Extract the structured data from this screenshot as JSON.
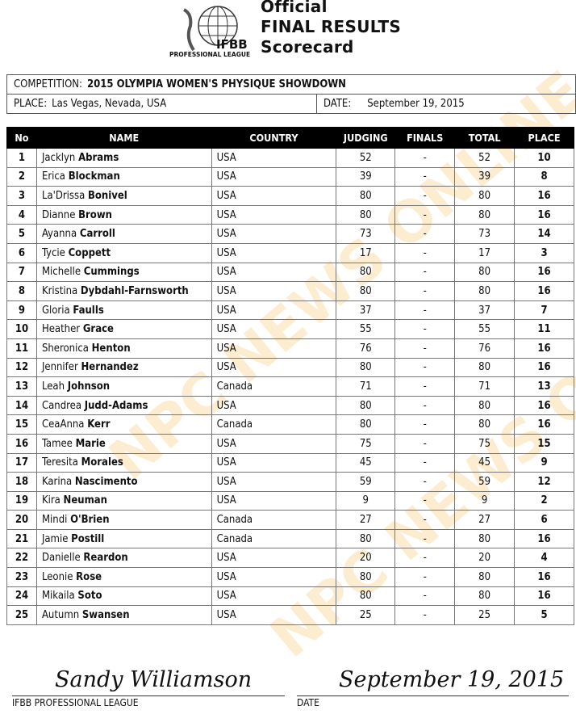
{
  "header": {
    "logo_text": "IFBB",
    "logo_subtext": "PROFESSIONAL LEAGUE",
    "title_lines": [
      "Official",
      "FINAL RESULTS",
      "Scorecard"
    ]
  },
  "info": {
    "competition_label": "COMPETITION:",
    "competition_value": "2015 OLYMPIA WOMEN'S PHYSIQUE SHOWDOWN",
    "place_label": "PLACE:",
    "place_value": "Las Vegas, Nevada, USA",
    "date_label": "DATE:",
    "date_value": "September 19, 2015"
  },
  "table": {
    "columns": [
      "No",
      "NAME",
      "COUNTRY",
      "JUDGING",
      "FINALS",
      "TOTAL",
      "PLACE"
    ],
    "rows": [
      {
        "no": "1",
        "first": "Jacklyn",
        "last": "Abrams",
        "country": "USA",
        "judging": "52",
        "finals": "-",
        "total": "52",
        "place": "10"
      },
      {
        "no": "2",
        "first": "Erica",
        "last": "Blockman",
        "country": "USA",
        "judging": "39",
        "finals": "-",
        "total": "39",
        "place": "8"
      },
      {
        "no": "3",
        "first": "La'Drissa",
        "last": "Bonivel",
        "country": "USA",
        "judging": "80",
        "finals": "-",
        "total": "80",
        "place": "16"
      },
      {
        "no": "4",
        "first": "Dianne",
        "last": "Brown",
        "country": "USA",
        "judging": "80",
        "finals": "-",
        "total": "80",
        "place": "16"
      },
      {
        "no": "5",
        "first": "Ayanna",
        "last": "Carroll",
        "country": "USA",
        "judging": "73",
        "finals": "-",
        "total": "73",
        "place": "14"
      },
      {
        "no": "6",
        "first": "Tycie",
        "last": "Coppett",
        "country": "USA",
        "judging": "17",
        "finals": "-",
        "total": "17",
        "place": "3"
      },
      {
        "no": "7",
        "first": "Michelle",
        "last": "Cummings",
        "country": "USA",
        "judging": "80",
        "finals": "-",
        "total": "80",
        "place": "16"
      },
      {
        "no": "8",
        "first": "Kristina",
        "last": "Dybdahl-Farnsworth",
        "country": "USA",
        "judging": "80",
        "finals": "-",
        "total": "80",
        "place": "16"
      },
      {
        "no": "9",
        "first": "Gloria",
        "last": "Faulls",
        "country": "USA",
        "judging": "37",
        "finals": "-",
        "total": "37",
        "place": "7"
      },
      {
        "no": "10",
        "first": "Heather",
        "last": "Grace",
        "country": "USA",
        "judging": "55",
        "finals": "-",
        "total": "55",
        "place": "11"
      },
      {
        "no": "11",
        "first": "Sheronica",
        "last": "Henton",
        "country": "USA",
        "judging": "76",
        "finals": "-",
        "total": "76",
        "place": "16"
      },
      {
        "no": "12",
        "first": "Jennifer",
        "last": "Hernandez",
        "country": "USA",
        "judging": "80",
        "finals": "-",
        "total": "80",
        "place": "16"
      },
      {
        "no": "13",
        "first": "Leah",
        "last": "Johnson",
        "country": "Canada",
        "judging": "71",
        "finals": "-",
        "total": "71",
        "place": "13"
      },
      {
        "no": "14",
        "first": "Candrea",
        "last": "Judd-Adams",
        "country": "USA",
        "judging": "80",
        "finals": "-",
        "total": "80",
        "place": "16"
      },
      {
        "no": "15",
        "first": "CeaAnna",
        "last": "Kerr",
        "country": "Canada",
        "judging": "80",
        "finals": "-",
        "total": "80",
        "place": "16"
      },
      {
        "no": "16",
        "first": "Tamee",
        "last": "Marie",
        "country": "USA",
        "judging": "75",
        "finals": "-",
        "total": "75",
        "place": "15"
      },
      {
        "no": "17",
        "first": "Teresita",
        "last": "Morales",
        "country": "USA",
        "judging": "45",
        "finals": "-",
        "total": "45",
        "place": "9"
      },
      {
        "no": "18",
        "first": "Karina",
        "last": "Nascimento",
        "country": "USA",
        "judging": "59",
        "finals": "-",
        "total": "59",
        "place": "12"
      },
      {
        "no": "19",
        "first": "Kira",
        "last": "Neuman",
        "country": "USA",
        "judging": "9",
        "finals": "-",
        "total": "9",
        "place": "2"
      },
      {
        "no": "20",
        "first": "Mindi",
        "last": "O'Brien",
        "country": "Canada",
        "judging": "27",
        "finals": "-",
        "total": "27",
        "place": "6"
      },
      {
        "no": "21",
        "first": "Jamie",
        "last": "Postill",
        "country": "Canada",
        "judging": "80",
        "finals": "-",
        "total": "80",
        "place": "16"
      },
      {
        "no": "22",
        "first": "Danielle",
        "last": "Reardon",
        "country": "USA",
        "judging": "20",
        "finals": "-",
        "total": "20",
        "place": "4"
      },
      {
        "no": "23",
        "first": "Leonie",
        "last": "Rose",
        "country": "USA",
        "judging": "80",
        "finals": "-",
        "total": "80",
        "place": "16"
      },
      {
        "no": "24",
        "first": "Mikaila",
        "last": "Soto",
        "country": "USA",
        "judging": "80",
        "finals": "-",
        "total": "80",
        "place": "16"
      },
      {
        "no": "25",
        "first": "Autumn",
        "last": "Swansen",
        "country": "USA",
        "judging": "25",
        "finals": "-",
        "total": "25",
        "place": "5"
      }
    ]
  },
  "footer": {
    "signature": "Sandy Williamson",
    "signature_label": "IFBB PROFESSIONAL LEAGUE",
    "signed_date": "September 19, 2015",
    "date_label": "DATE"
  },
  "watermark": "NPC NEWS ONLINE"
}
